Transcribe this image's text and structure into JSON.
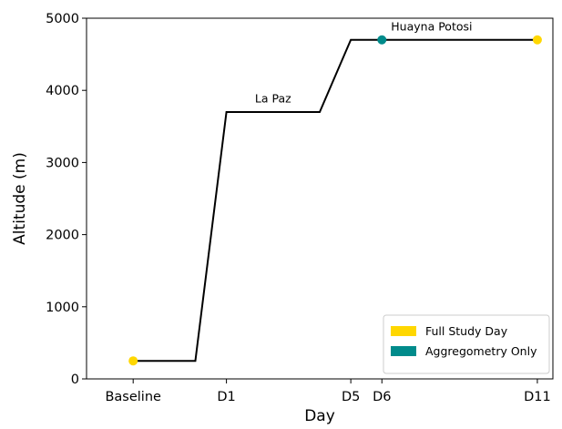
{
  "chart_data": {
    "type": "line",
    "title": "",
    "xlabel": "Day",
    "ylabel": "Altitude (m)",
    "xlim": [
      -1.5,
      13.5
    ],
    "ylim": [
      0,
      5000
    ],
    "grid": false,
    "x_ticks": [
      {
        "value": 0,
        "label": "Baseline"
      },
      {
        "value": 3,
        "label": "D1"
      },
      {
        "value": 7,
        "label": "D5"
      },
      {
        "value": 8,
        "label": "D6"
      },
      {
        "value": 13,
        "label": "D11"
      }
    ],
    "y_ticks": [
      0,
      1000,
      2000,
      3000,
      4000,
      5000
    ],
    "series": [
      {
        "color": "#000000",
        "x": [
          0,
          2,
          3,
          6,
          7,
          8,
          13
        ],
        "y": [
          250,
          250,
          3700,
          3700,
          4700,
          4700,
          4700
        ]
      }
    ],
    "points": [
      {
        "x": 0,
        "y": 250,
        "category": "Full Study Day",
        "color": "#FFD700"
      },
      {
        "x": 8,
        "y": 4700,
        "category": "Aggregometry Only",
        "color": "#008B8B"
      },
      {
        "x": 13,
        "y": 4700,
        "category": "Full Study Day",
        "color": "#FFD700"
      }
    ],
    "annotations": [
      {
        "text": "La Paz",
        "x": 4.5,
        "y": 3830
      },
      {
        "text": "Huayna Potosi",
        "x": 9.6,
        "y": 4830
      }
    ],
    "legend": {
      "position": "lower-right",
      "entries": [
        {
          "label": "Full Study Day",
          "color": "#FFD700"
        },
        {
          "label": "Aggregometry Only",
          "color": "#008B8B"
        }
      ]
    }
  }
}
